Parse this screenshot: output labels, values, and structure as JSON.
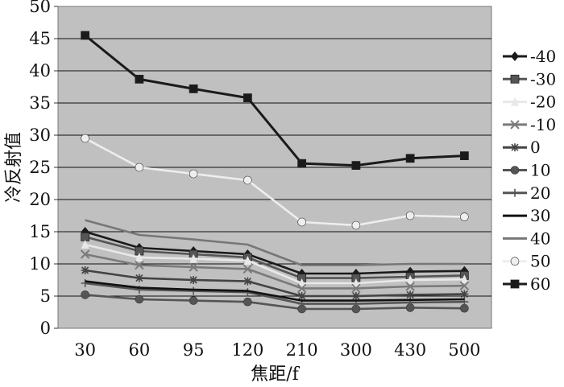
{
  "chart_data": {
    "type": "line",
    "title": "",
    "xlabel": "焦距/f",
    "ylabel": "冷反射值",
    "categories": [
      "30",
      "60",
      "95",
      "120",
      "210",
      "300",
      "430",
      "500"
    ],
    "ylim": [
      0,
      50
    ],
    "yticks": [
      "0",
      "5",
      "10",
      "15",
      "20",
      "25",
      "30",
      "35",
      "40",
      "45",
      "50"
    ],
    "grid": true,
    "legend_position": "right",
    "plot_background": "#c0c0c0",
    "series": [
      {
        "name": "-40",
        "color": "#1a1a1a",
        "marker": "diamond",
        "values": [
          15.0,
          12.5,
          12.0,
          11.5,
          8.5,
          8.5,
          8.8,
          8.9
        ]
      },
      {
        "name": "-30",
        "color": "#555555",
        "marker": "square",
        "values": [
          14.2,
          12.0,
          11.5,
          11.0,
          7.8,
          7.8,
          8.0,
          8.2
        ]
      },
      {
        "name": "-20",
        "color": "#e8e8e8",
        "marker": "triangle",
        "values": [
          13.0,
          11.0,
          10.8,
          10.5,
          7.0,
          7.0,
          7.5,
          7.6
        ]
      },
      {
        "name": "-10",
        "color": "#7a7a7a",
        "marker": "x",
        "values": [
          11.5,
          9.8,
          9.5,
          9.2,
          6.2,
          6.2,
          6.5,
          6.6
        ]
      },
      {
        "name": "0",
        "color": "#444444",
        "marker": "star",
        "values": [
          9.0,
          7.8,
          7.5,
          7.3,
          5.0,
          5.0,
          5.2,
          5.3
        ]
      },
      {
        "name": "10",
        "color": "#555555",
        "marker": "circle",
        "values": [
          5.2,
          4.5,
          4.3,
          4.1,
          3.0,
          3.0,
          3.2,
          3.1
        ]
      },
      {
        "name": "20",
        "color": "#555555",
        "marker": "plus",
        "values": [
          7.0,
          6.0,
          5.8,
          5.6,
          3.8,
          3.8,
          4.0,
          4.1
        ]
      },
      {
        "name": "30",
        "color": "#111111",
        "marker": "none",
        "values": [
          7.3,
          6.3,
          6.0,
          5.8,
          4.3,
          4.3,
          4.4,
          4.5
        ]
      },
      {
        "name": "40",
        "color": "#777777",
        "marker": "none",
        "values": [
          16.8,
          14.5,
          13.8,
          13.0,
          9.8,
          9.8,
          10.0,
          10.0
        ]
      },
      {
        "name": "50",
        "color": "#eeeeee",
        "marker": "circle",
        "values": [
          29.5,
          25.0,
          24.0,
          23.0,
          16.5,
          16.0,
          17.5,
          17.3
        ]
      },
      {
        "name": "60",
        "color": "#1a1a1a",
        "marker": "square",
        "values": [
          45.5,
          38.7,
          37.2,
          35.8,
          25.6,
          25.3,
          26.4,
          26.8
        ]
      }
    ]
  }
}
